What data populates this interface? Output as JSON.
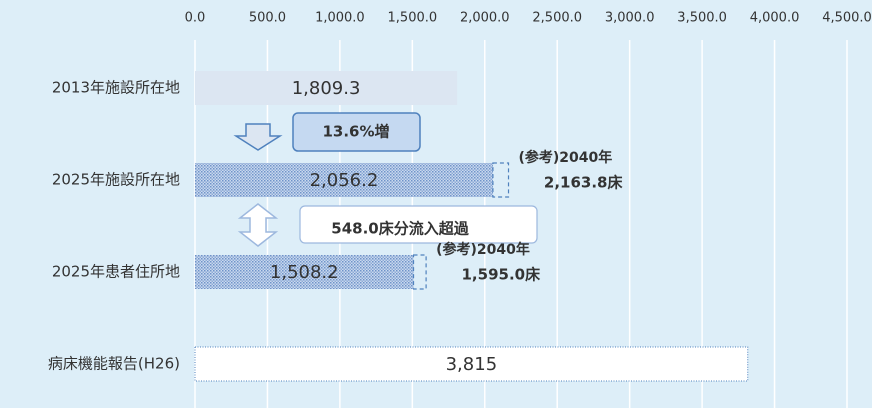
{
  "chart_data": {
    "type": "bar",
    "orientation": "horizontal",
    "categories": [
      "2013年施設所在地",
      "2025年施設所在地",
      "2025年患者住所地",
      "病床機能報告(H26)"
    ],
    "values": [
      1809.3,
      2056.2,
      1508.2,
      3815
    ],
    "value_labels": [
      "1,809.3",
      "2,056.2",
      "1,508.2",
      "3,815"
    ],
    "bar_fills": [
      "solid",
      "dotted",
      "dotted",
      "outline"
    ],
    "color": "#4f81bd",
    "light_color": "#dce6f2",
    "xlim": [
      0,
      4500
    ],
    "xticks": [
      {
        "value": 0,
        "label": "0.0"
      },
      {
        "value": 500,
        "label": "500.0"
      },
      {
        "value": 1000,
        "label": "1,000.0"
      },
      {
        "value": 1500,
        "label": "1,500.0"
      },
      {
        "value": 2000,
        "label": "2,000.0"
      },
      {
        "value": 2500,
        "label": "2,500.0"
      },
      {
        "value": 3000,
        "label": "3,000.0"
      },
      {
        "value": 3500,
        "label": "3,500.0"
      },
      {
        "value": 4000,
        "label": "4,000.0"
      },
      {
        "value": 4500,
        "label": "4,500.0"
      }
    ],
    "grid": true,
    "reference_title": "(参考)2040年",
    "reference_values": [
      null,
      2163.8,
      1595.0,
      null
    ],
    "reference_labels": [
      null,
      "2,163.8床",
      "1,595.0床",
      null
    ],
    "growth_label": "13.6%増",
    "inflow_label": "548.0床分流入超過"
  }
}
